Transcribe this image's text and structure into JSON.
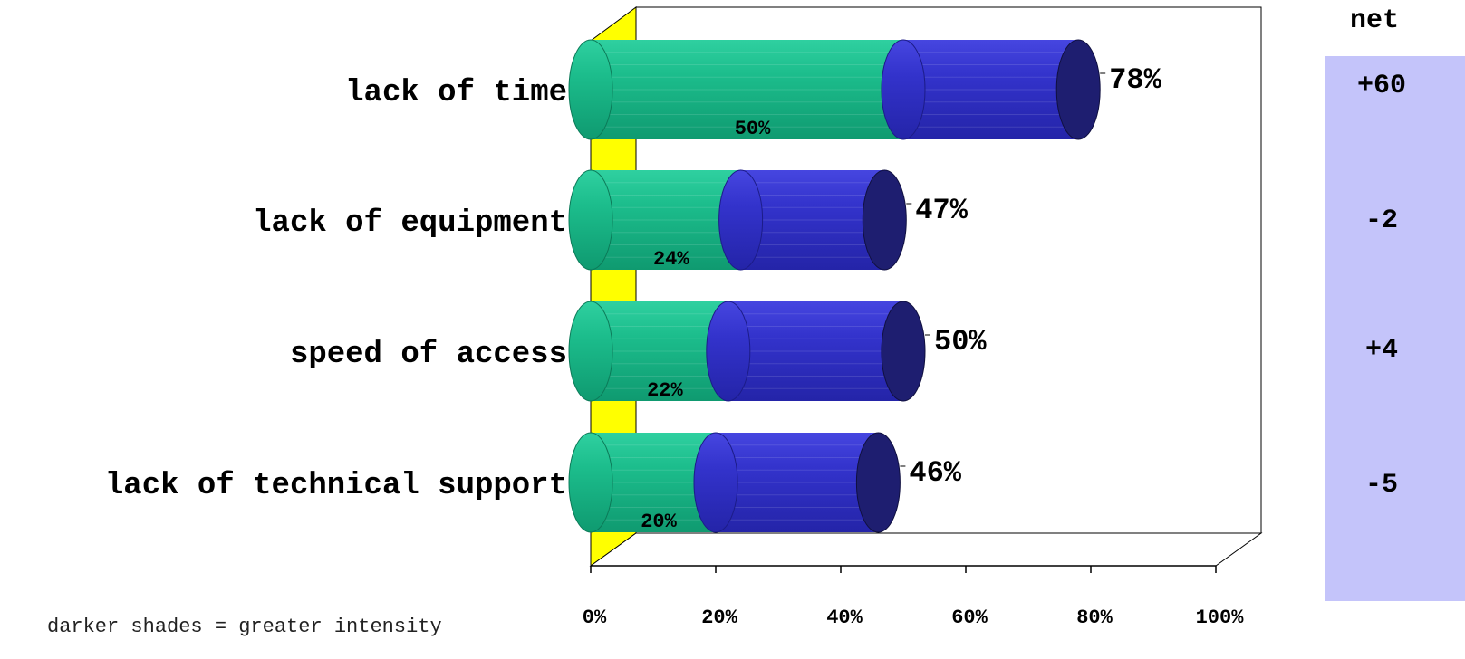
{
  "chart_data": {
    "type": "bar",
    "orientation": "horizontal",
    "three_d": true,
    "categories": [
      "lack of time",
      "lack of equipment",
      "speed of access",
      "lack of technical support"
    ],
    "series": [
      {
        "values": [
          50,
          24,
          22,
          20
        ],
        "color": "#1db58a"
      },
      {
        "values": [
          28,
          23,
          28,
          26
        ],
        "color": "#3030c8"
      }
    ],
    "totals": [
      78,
      47,
      50,
      46
    ],
    "total_labels": [
      "78%",
      "47%",
      "50%",
      "46%"
    ],
    "inner_labels": [
      "50%",
      "24%",
      "22%",
      "20%"
    ],
    "xlim": [
      0,
      100
    ],
    "x_ticks": [
      0,
      20,
      40,
      60,
      80,
      100
    ],
    "x_tick_labels": [
      "0%",
      "20%",
      "40%",
      "60%",
      "80%",
      "100%"
    ],
    "wall_color": "#ffff00",
    "note": "darker shades = greater intensity"
  },
  "net_panel": {
    "header": "net",
    "values": [
      "+60",
      "-2",
      "+4",
      "-5"
    ]
  }
}
